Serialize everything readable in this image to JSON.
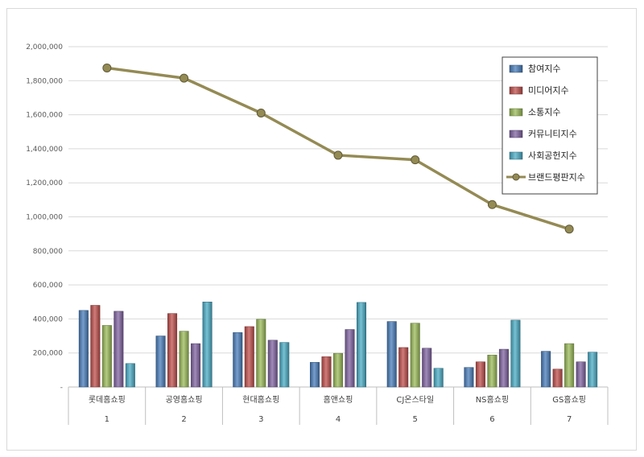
{
  "chart_data": {
    "type": "bar",
    "title": "",
    "xlabel": "",
    "ylabel": "",
    "ylim": [
      0,
      2000000
    ],
    "ytick_labels": [
      "-",
      "200,000",
      "400,000",
      "600,000",
      "800,000",
      "1,000,000",
      "1,200,000",
      "1,400,000",
      "1,600,000",
      "1,800,000",
      "2,000,000"
    ],
    "categories": [
      "롯데홈쇼핑",
      "공영홈쇼핑",
      "현대홈쇼핑",
      "홈앤쇼핑",
      "CJ온스타일",
      "NS홈쇼핑",
      "GS홈쇼핑"
    ],
    "ranks": [
      "1",
      "2",
      "3",
      "4",
      "5",
      "6",
      "7"
    ],
    "grid": true,
    "legend_position": "top-right",
    "series": [
      {
        "name": "참여지수",
        "kind": "bar",
        "color": "#4a7ebb",
        "values": [
          450000,
          300000,
          320000,
          145000,
          385000,
          115000,
          210000
        ]
      },
      {
        "name": "미디어지수",
        "kind": "bar",
        "color": "#c0504d",
        "values": [
          480000,
          432000,
          355000,
          178000,
          232000,
          148000,
          105000
        ]
      },
      {
        "name": "소통지수",
        "kind": "bar",
        "color": "#9bbb59",
        "values": [
          362000,
          328000,
          398000,
          198000,
          375000,
          188000,
          255000
        ]
      },
      {
        "name": "커뮤니티지수",
        "kind": "bar",
        "color": "#8064a2",
        "values": [
          445000,
          255000,
          275000,
          338000,
          228000,
          222000,
          148000
        ]
      },
      {
        "name": "사회공헌지수",
        "kind": "bar",
        "color": "#4bacc6",
        "values": [
          138000,
          500000,
          262000,
          497000,
          110000,
          393000,
          205000
        ]
      },
      {
        "name": "브랜드평판지수",
        "kind": "line",
        "color": "#948a54",
        "values": [
          1875000,
          1815000,
          1610000,
          1362000,
          1335000,
          1072000,
          928000
        ]
      }
    ]
  }
}
